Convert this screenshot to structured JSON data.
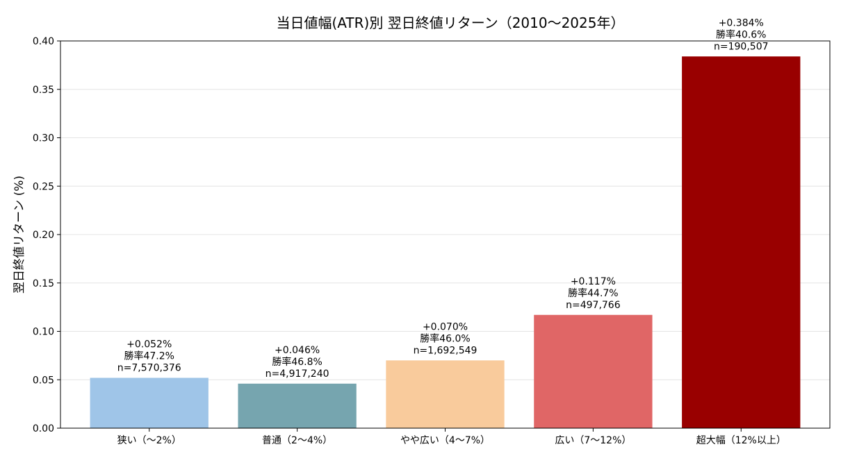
{
  "chart_data": {
    "type": "bar",
    "title": "当日値幅(ATR)別 翌日終値リターン（2010〜2025年）",
    "xlabel": "",
    "ylabel": "翌日終値リターン (%)",
    "ylim": [
      0,
      0.4
    ],
    "yticks": [
      "0.00",
      "0.05",
      "0.10",
      "0.15",
      "0.20",
      "0.25",
      "0.30",
      "0.35",
      "0.40"
    ],
    "grid": "horizontal",
    "categories": [
      "狭い（〜2%）",
      "普通（2〜4%）",
      "やや広い（4〜7%）",
      "広い（7〜12%）",
      "超大幅（12%以上）"
    ],
    "values": [
      0.052,
      0.046,
      0.07,
      0.117,
      0.384
    ],
    "value_labels": [
      "+0.052%",
      "+0.046%",
      "+0.070%",
      "+0.117%",
      "+0.384%"
    ],
    "win_rate_labels": [
      "勝率47.2%",
      "勝率46.8%",
      "勝率46.0%",
      "勝率44.7%",
      "勝率40.6%"
    ],
    "count_labels": [
      "n=7,570,376",
      "n=4,917,240",
      "n=1,692,549",
      "n=497,766",
      "n=190,507"
    ],
    "colors": [
      "#9fc5e8",
      "#76a5af",
      "#f9cb9c",
      "#e06666",
      "#990000"
    ]
  }
}
